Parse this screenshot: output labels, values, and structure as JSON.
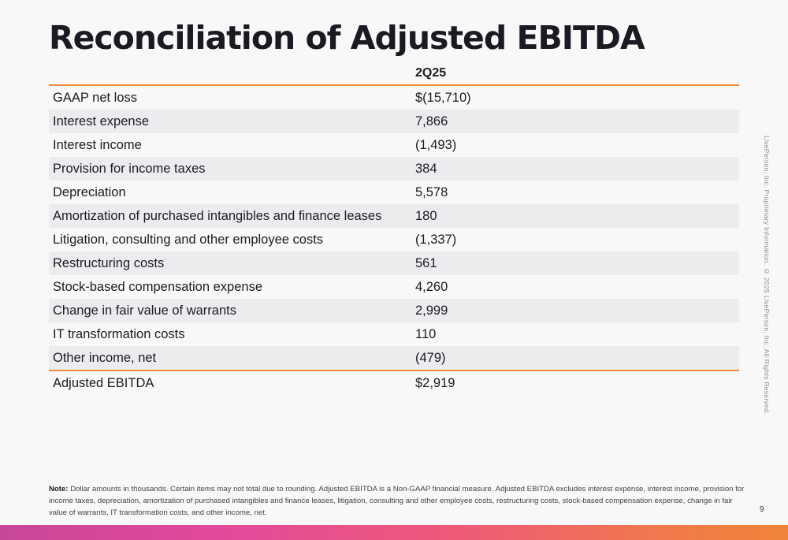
{
  "page": {
    "title": "Reconciliation of Adjusted EBITDA",
    "side_note": "LivePerson, Inc. Proprietary Information. © 2025 LivePerson, Inc. All Rights Reserved.",
    "page_number": "9",
    "accent_color": "#f08a3c"
  },
  "table": {
    "column_header": "2Q25",
    "rows": [
      {
        "label": "GAAP net loss",
        "value": "$(15,710)"
      },
      {
        "label": "Interest expense",
        "value": "7,866"
      },
      {
        "label": "Interest income",
        "value": "(1,493)"
      },
      {
        "label": "Provision for income taxes",
        "value": "384"
      },
      {
        "label": "Depreciation",
        "value": "5,578"
      },
      {
        "label": "Amortization of purchased intangibles and finance leases",
        "value": "180"
      },
      {
        "label": "Litigation, consulting and other employee costs",
        "value": "(1,337)"
      },
      {
        "label": "Restructuring costs",
        "value": "561"
      },
      {
        "label": "Stock-based compensation expense",
        "value": "4,260"
      },
      {
        "label": "Change in fair value of warrants",
        "value": "2,999"
      },
      {
        "label": "IT transformation costs",
        "value": "110"
      },
      {
        "label": "Other income, net",
        "value": "(479)"
      }
    ],
    "total": {
      "label": "Adjusted EBITDA",
      "value": "$2,919"
    }
  },
  "note": {
    "label": "Note:",
    "text": "Dollar amounts in thousands. Certain items may not total due to rounding. Adjusted EBITDA is a Non-GAAP financial measure. Adjusted EBITDA excludes interest expense, interest income, provision for income taxes, depreciation, amortization of purchased intangibles and finance leases, litigation, consulting and other employee costs, restructuring costs, stock-based compensation expense, change in fair value of warrants, IT transformation costs, and other income, net."
  }
}
